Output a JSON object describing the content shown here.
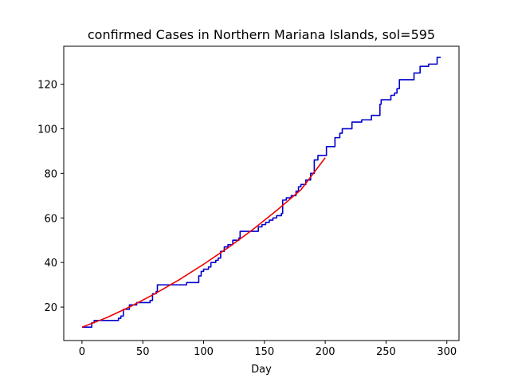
{
  "chart_data": {
    "type": "line",
    "title": "confirmed Cases in Northern Mariana Islands, sol=595",
    "xlabel": "Day",
    "ylabel": "",
    "xlim": [
      -15,
      310
    ],
    "ylim": [
      5,
      137
    ],
    "xticks": [
      0,
      50,
      100,
      150,
      200,
      250,
      300
    ],
    "yticks": [
      20,
      40,
      60,
      80,
      100,
      120
    ],
    "grid": false,
    "legend": "none",
    "series": [
      {
        "color": "#0000cc",
        "style": "step",
        "points": [
          [
            0,
            11
          ],
          [
            7,
            11
          ],
          [
            8,
            13
          ],
          [
            10,
            14
          ],
          [
            28,
            14
          ],
          [
            30,
            15
          ],
          [
            32,
            16
          ],
          [
            34,
            19
          ],
          [
            38,
            19
          ],
          [
            39,
            21
          ],
          [
            44,
            21
          ],
          [
            45,
            22
          ],
          [
            55,
            22
          ],
          [
            56,
            23
          ],
          [
            58,
            26
          ],
          [
            61,
            27
          ],
          [
            62,
            30
          ],
          [
            85,
            30
          ],
          [
            86,
            31
          ],
          [
            95,
            31
          ],
          [
            96,
            34
          ],
          [
            98,
            36
          ],
          [
            100,
            37
          ],
          [
            104,
            38
          ],
          [
            106,
            40
          ],
          [
            110,
            41
          ],
          [
            112,
            42
          ],
          [
            114,
            45
          ],
          [
            117,
            47
          ],
          [
            120,
            48
          ],
          [
            124,
            50
          ],
          [
            129,
            51
          ],
          [
            130,
            54
          ],
          [
            143,
            54
          ],
          [
            145,
            56
          ],
          [
            148,
            57
          ],
          [
            151,
            58
          ],
          [
            154,
            59
          ],
          [
            157,
            60
          ],
          [
            160,
            61
          ],
          [
            164,
            62
          ],
          [
            165,
            68
          ],
          [
            168,
            69
          ],
          [
            172,
            70
          ],
          [
            176,
            72
          ],
          [
            178,
            74
          ],
          [
            180,
            75
          ],
          [
            184,
            77
          ],
          [
            188,
            80
          ],
          [
            191,
            86
          ],
          [
            194,
            88
          ],
          [
            200,
            88
          ],
          [
            201,
            92
          ],
          [
            207,
            92
          ],
          [
            208,
            96
          ],
          [
            212,
            98
          ],
          [
            214,
            100
          ],
          [
            221,
            100
          ],
          [
            222,
            103
          ],
          [
            229,
            103
          ],
          [
            230,
            104
          ],
          [
            237,
            104
          ],
          [
            238,
            106
          ],
          [
            244,
            106
          ],
          [
            245,
            111
          ],
          [
            246,
            113
          ],
          [
            253,
            113
          ],
          [
            254,
            115
          ],
          [
            257,
            116
          ],
          [
            259,
            118
          ],
          [
            261,
            122
          ],
          [
            272,
            122
          ],
          [
            273,
            125
          ],
          [
            277,
            125
          ],
          [
            278,
            128
          ],
          [
            284,
            128
          ],
          [
            285,
            129
          ],
          [
            291,
            129
          ],
          [
            292,
            132
          ],
          [
            295,
            132
          ]
        ]
      },
      {
        "color": "#ee0000",
        "style": "smooth",
        "points": [
          [
            0,
            11
          ],
          [
            20,
            15.2
          ],
          [
            40,
            20.3
          ],
          [
            60,
            26.0
          ],
          [
            80,
            32.3
          ],
          [
            100,
            39.2
          ],
          [
            120,
            46.6
          ],
          [
            140,
            54.6
          ],
          [
            160,
            63.3
          ],
          [
            180,
            72.6
          ],
          [
            200,
            87
          ]
        ]
      }
    ]
  }
}
